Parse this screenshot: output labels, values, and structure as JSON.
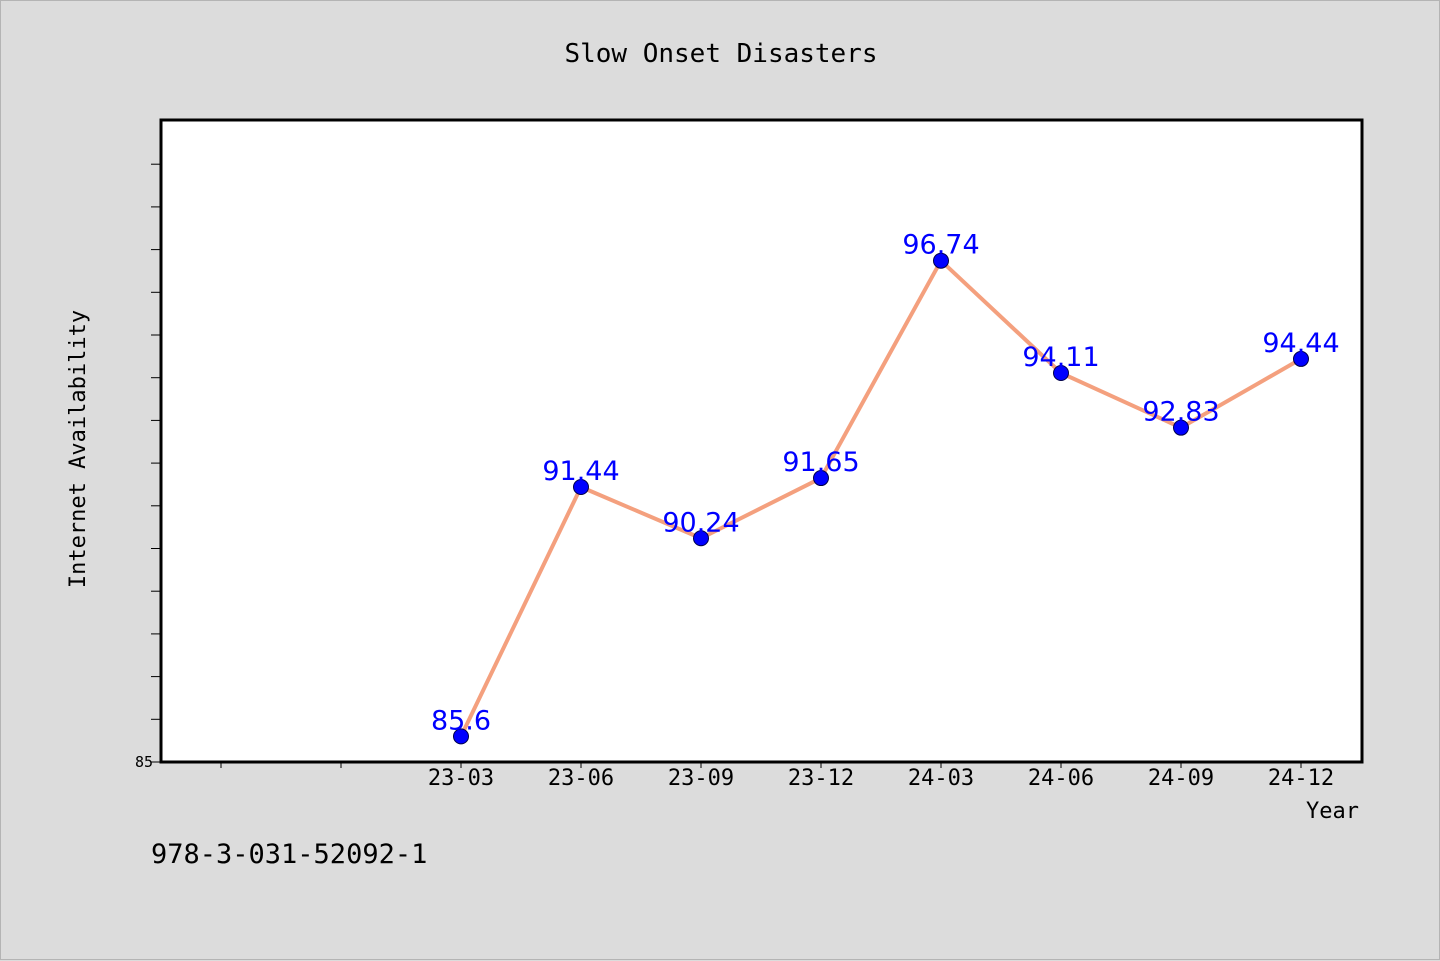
{
  "chart_data": {
    "type": "line",
    "title": "Slow Onset Disasters",
    "xlabel": "Year",
    "ylabel": "Internet Availability",
    "categories": [
      "23-03",
      "23-06",
      "23-09",
      "23-12",
      "24-03",
      "24-06",
      "24-09",
      "24-12"
    ],
    "series": [
      {
        "values": [
          85.6,
          91.44,
          90.24,
          91.65,
          96.74,
          94.11,
          92.83,
          94.44
        ],
        "labels": [
          "85.6",
          "91.44",
          "90.24",
          "91.65",
          "96.74",
          "94.11",
          "92.83",
          "94.44"
        ],
        "line_color": "#f4a07e",
        "marker_color": "#0000ff"
      }
    ],
    "ylim": [
      85,
      100
    ],
    "yticks_labeled": [
      "85"
    ],
    "grid": false,
    "legend": "none"
  },
  "footer": {
    "text": "978-3-031-52092-1"
  },
  "colors": {
    "background": "#dcdcdc",
    "plot_area": "#ffffff",
    "data_label": "#0000ff"
  }
}
